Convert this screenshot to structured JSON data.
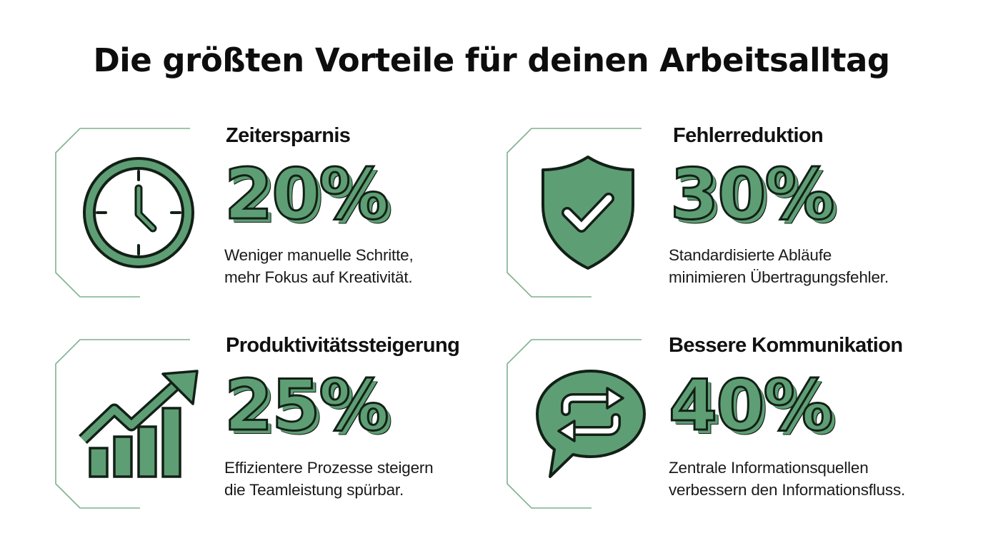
{
  "title": "Die größten Vorteile für deinen Arbeitsalltag",
  "colors": {
    "accent": "#5e9e74",
    "outline": "#122016",
    "frame": "#7fb08f",
    "text": "#111111"
  },
  "cards": [
    {
      "heading": "Zeitersparnis",
      "value": "20%",
      "description": [
        "Weniger manuelle Schritte,",
        "mehr Fokus auf Kreativität."
      ],
      "icon": "clock-icon"
    },
    {
      "heading": "Fehlerreduktion",
      "value": "30%",
      "description": [
        "Standardisierte Abläufe",
        "minimieren Übertragungsfehler."
      ],
      "icon": "shield-check-icon"
    },
    {
      "heading": "Produktivitätssteigerung",
      "value": "25%",
      "description": [
        "Effizientere Prozesse steigern",
        "die Teamleistung spürbar."
      ],
      "icon": "growth-chart-icon"
    },
    {
      "heading": "Bessere Kommunikation",
      "value": "40%",
      "description": [
        "Zentrale Informationsquellen",
        "verbessern den Informationsfluss."
      ],
      "icon": "chat-exchange-icon"
    }
  ]
}
